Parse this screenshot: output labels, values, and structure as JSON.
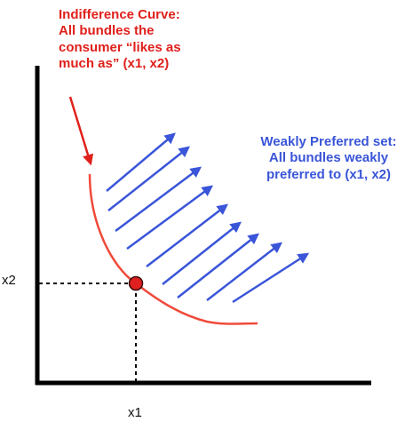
{
  "indifference_label": {
    "lines": [
      "Indifference Curve:",
      "All bundles the",
      "consumer “likes as",
      "much as” (x1, x2)"
    ]
  },
  "preferred_label": {
    "lines": [
      "Weakly Preferred set:",
      "All bundles weakly",
      "preferred to (x1, x2)"
    ]
  },
  "axes": {
    "x_label": "x1",
    "y_label": "x2"
  },
  "colors": {
    "curve": "#f04a3a",
    "label_red": "#e0201b",
    "arrows": "#3a55d8",
    "point_fill": "#e02020",
    "axis": "#000000"
  }
}
